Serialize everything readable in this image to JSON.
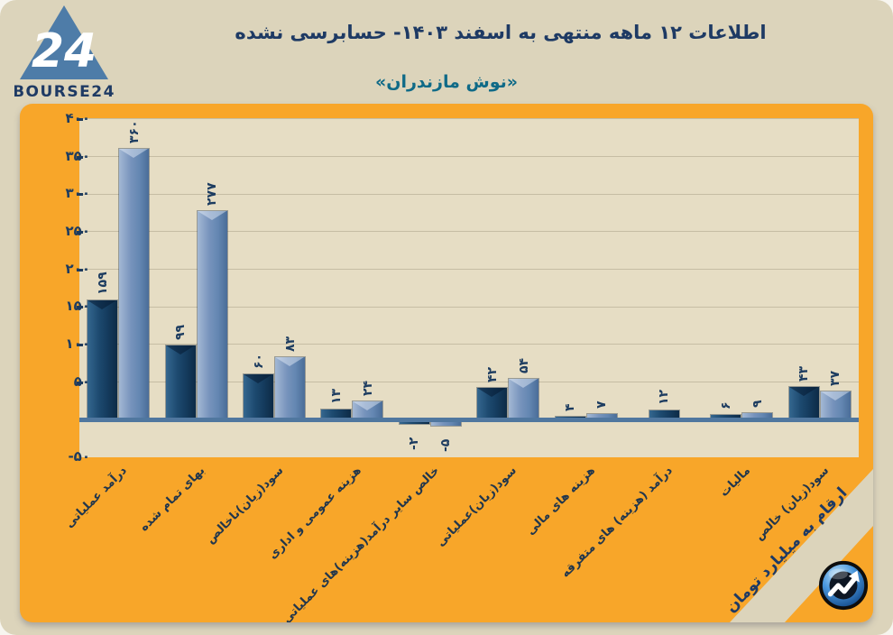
{
  "header": {
    "logo": {
      "mark": "24",
      "brand": "BOURSE24"
    },
    "title": "اطلاعات ۱۲ ماهه منتهی به اسفند ۱۴۰۳- حسابرسی نشده",
    "subtitle": "«نوش مازندران»"
  },
  "corner_note": "ارقام به میلیارد تومان",
  "colors": {
    "page_background": "#dcd4bb",
    "card_orange": "#f8a629",
    "plot_beige": "#e6ddc4",
    "gridline": "#c6bda4",
    "bar_dark": "#1b4268",
    "bar_light": "#7190ba",
    "baseline": "#50779f",
    "title_navy": "#1e3a64",
    "subtitle_teal": "#0f6a87",
    "label_navy": "#1d3c60"
  },
  "chart_data": {
    "type": "bar",
    "title": "اطلاعات ۱۲ ماهه منتهی به اسفند ۱۴۰۳- حسابرسی نشده",
    "subtitle": "«نوش مازندران»",
    "unit_note": "ارقام به میلیارد تومان",
    "categories": [
      "درآمد عملیاتی",
      "بهای تمام شده",
      "سود(زیان)ناخالص",
      "هزینه عمومی و اداری",
      "خالص سایر درآمد(هزینه)های عملیاتی",
      "سود(زیان)عملیاتی",
      "هزینه های مالی",
      "درآمد (هزینه) های متفرقه",
      "مالیات",
      "سود(زیان) خالص"
    ],
    "series": [
      {
        "name": "dark-blue",
        "values": [
          159,
          99,
          60,
          13,
          -2,
          42,
          4,
          12,
          6,
          43
        ],
        "labels": [
          "۱۵۹",
          "۹۹",
          "۶۰",
          "۱۳",
          "-۲",
          "۴۲",
          "۴",
          "۱۲",
          "۶",
          "۴۳"
        ]
      },
      {
        "name": "light-blue",
        "values": [
          360,
          277,
          83,
          24,
          -5,
          54,
          7,
          null,
          9,
          37
        ],
        "labels": [
          "۳۶۰",
          "۲۷۷",
          "۸۳",
          "۲۴",
          "-۵",
          "۵۴",
          "۷",
          null,
          "۹",
          "۳۷"
        ]
      }
    ],
    "y_ticks": [
      {
        "v": 400,
        "label": "۴۰۰"
      },
      {
        "v": 350,
        "label": "۳۵۰"
      },
      {
        "v": 300,
        "label": "۳۰۰"
      },
      {
        "v": 250,
        "label": "۲۵۰"
      },
      {
        "v": 200,
        "label": "۲۰۰"
      },
      {
        "v": 150,
        "label": "۱۵۰"
      },
      {
        "v": 100,
        "label": "۱۰۰"
      },
      {
        "v": 50,
        "label": "۵۰"
      },
      {
        "v": -50,
        "label": "-۵۰"
      }
    ],
    "ylim": [
      -50,
      400
    ],
    "grid": true,
    "legend_position": "none",
    "value_labels_rotated": true
  }
}
